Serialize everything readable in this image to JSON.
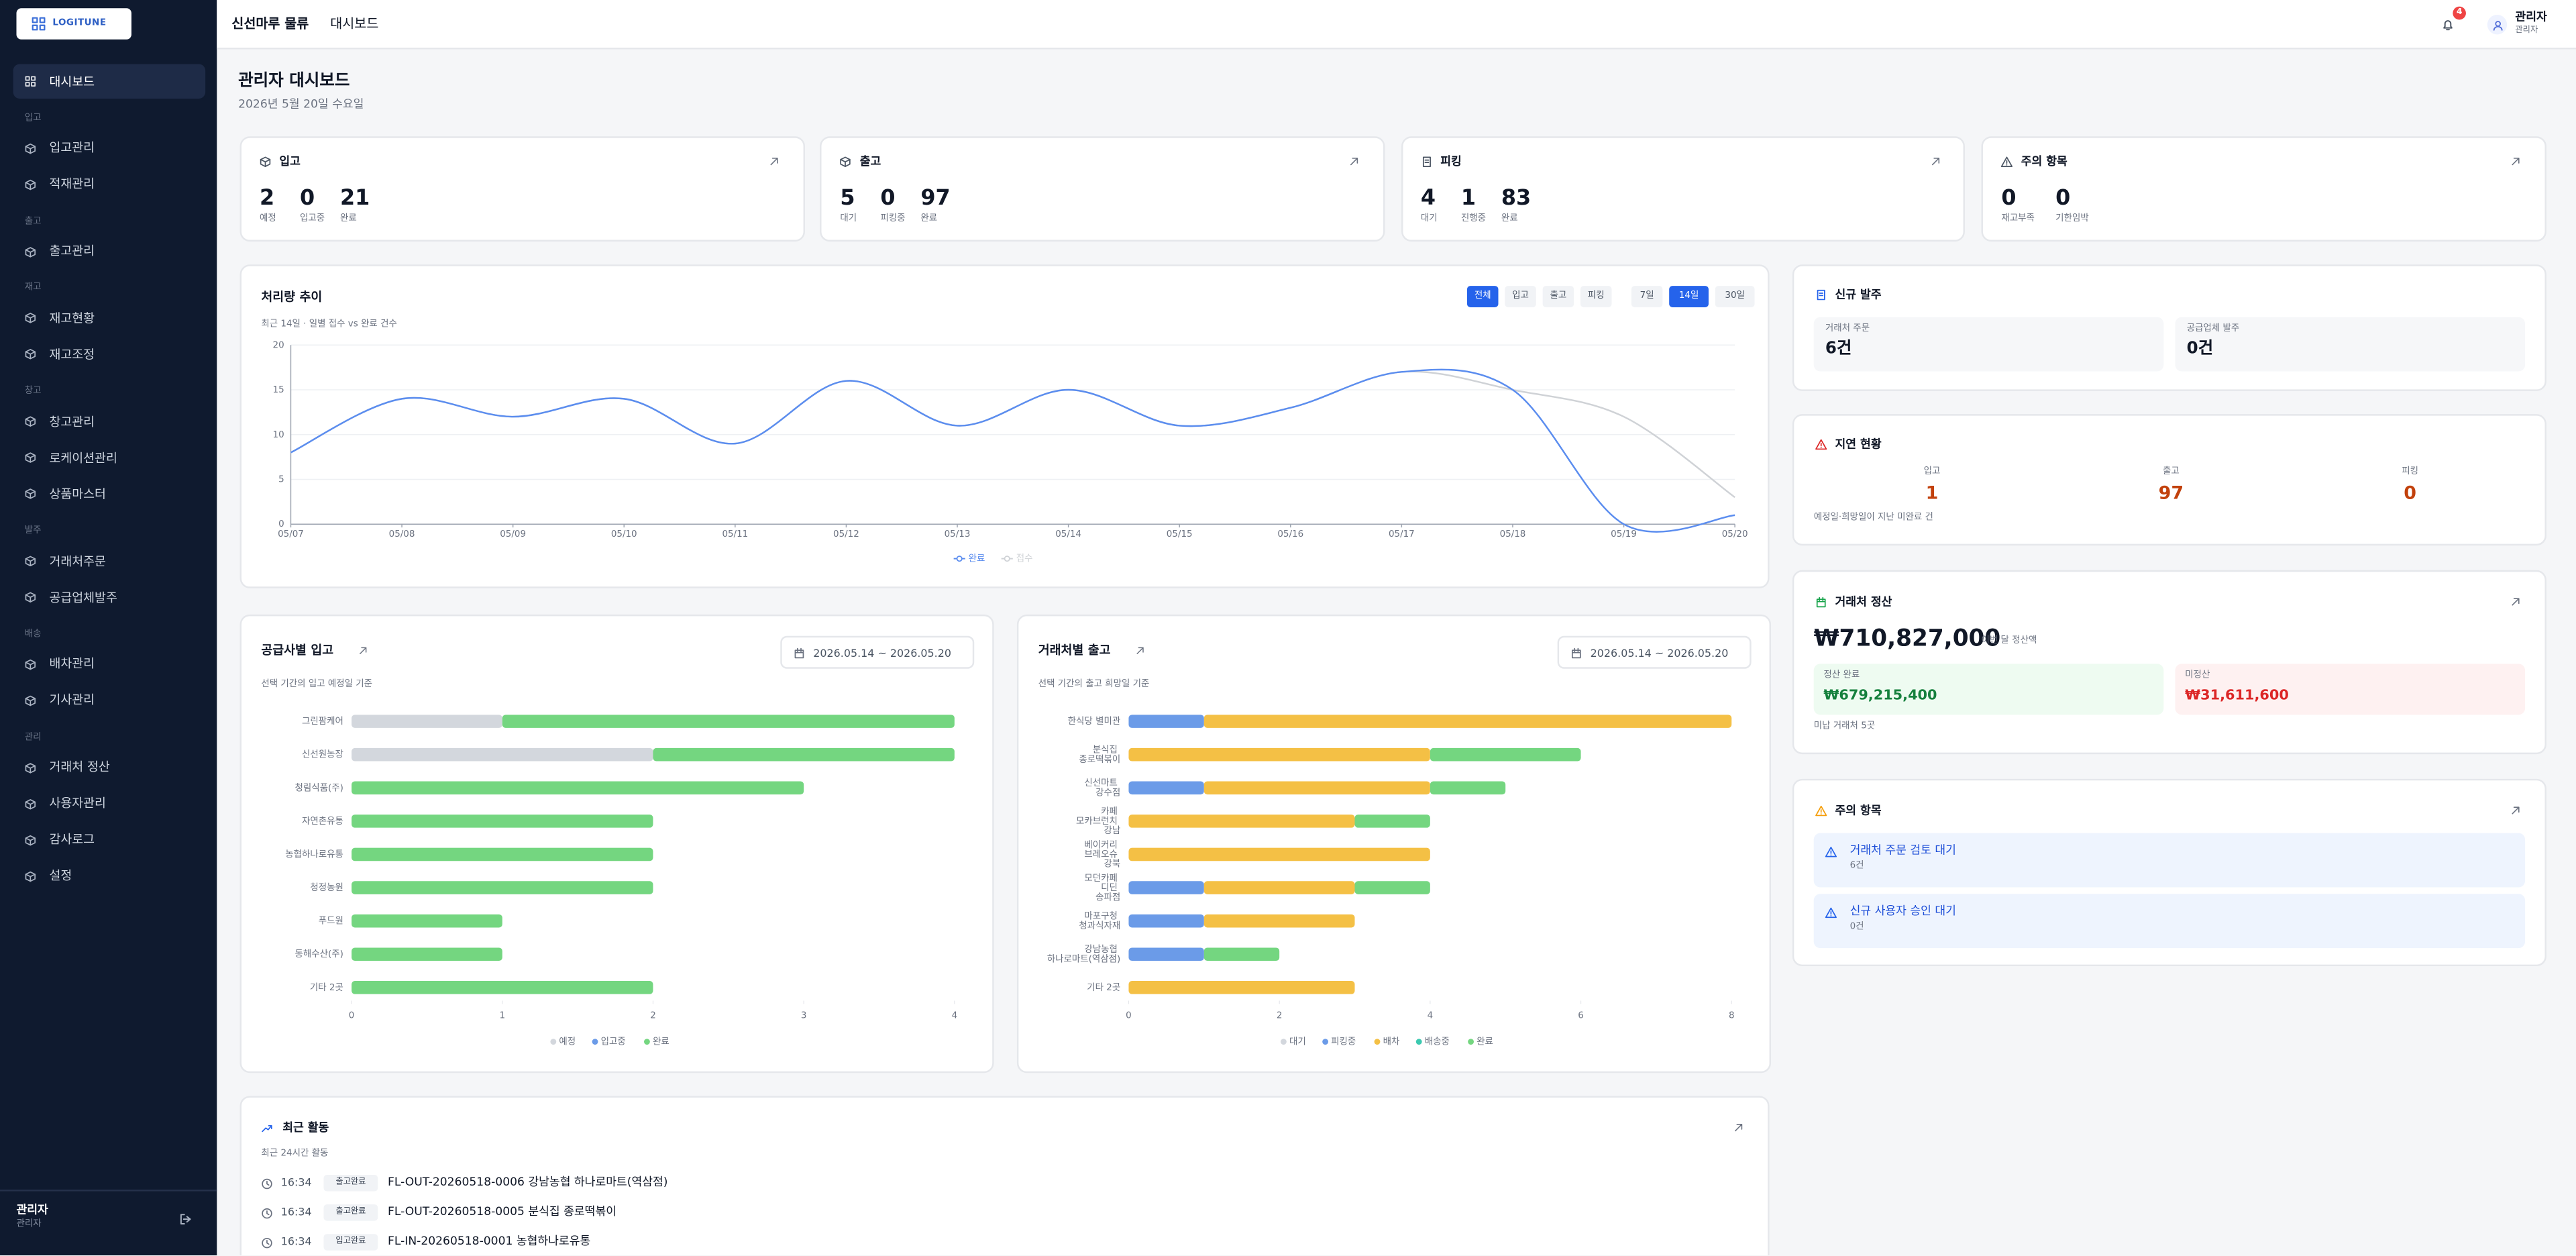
{
  "sidebar": {
    "logo": "LOGITUNE",
    "home": "대시보드",
    "groups": [
      {
        "title": "입고",
        "items": [
          "입고관리",
          "적재관리"
        ]
      },
      {
        "title": "출고",
        "items": [
          "출고관리"
        ]
      },
      {
        "title": "재고",
        "items": [
          "재고현황",
          "재고조정"
        ]
      },
      {
        "title": "창고",
        "items": [
          "창고관리",
          "로케이션관리",
          "상품마스터"
        ]
      },
      {
        "title": "발주",
        "items": [
          "거래처주문",
          "공급업체발주"
        ]
      },
      {
        "title": "배송",
        "items": [
          "배차관리",
          "기사관리"
        ]
      },
      {
        "title": "관리",
        "items": [
          "거래처 정산",
          "사용자관리",
          "감사로그",
          "설정"
        ]
      }
    ],
    "user": {
      "name": "관리자",
      "role": "관리자"
    }
  },
  "header": {
    "breadcrumb": [
      "신선마루 물류",
      "대시보드"
    ],
    "notifications": 4,
    "user": {
      "name": "관리자",
      "role": "관리자"
    }
  },
  "page": {
    "title": "관리자 대시보드",
    "date": "2026년 5월 20일 수요일"
  },
  "summary_cards": [
    {
      "title": "입고",
      "stats": [
        {
          "value": 2,
          "label": "예정"
        },
        {
          "value": 0,
          "label": "입고중"
        },
        {
          "value": 21,
          "label": "완료"
        }
      ]
    },
    {
      "title": "출고",
      "stats": [
        {
          "value": 5,
          "label": "대기"
        },
        {
          "value": 0,
          "label": "피킹중"
        },
        {
          "value": 97,
          "label": "완료"
        }
      ]
    },
    {
      "title": "피킹",
      "stats": [
        {
          "value": 4,
          "label": "대기"
        },
        {
          "value": 1,
          "label": "진행중"
        },
        {
          "value": 83,
          "label": "완료"
        }
      ]
    },
    {
      "title": "주의 항목",
      "stats": [
        {
          "value": 0,
          "label": "재고부족"
        },
        {
          "value": 0,
          "label": "기한임박"
        }
      ]
    }
  ],
  "chart_data": [
    {
      "type": "line",
      "title": "처리량 추이",
      "subtitle": "최근 14일 · 일별 접수 vs 완료 건수",
      "filters": [
        "전체",
        "입고",
        "출고",
        "피킹"
      ],
      "active_filter": "전체",
      "ranges": [
        "7일",
        "14일",
        "30일"
      ],
      "active_range": "14일",
      "categories": [
        "05/07",
        "05/08",
        "05/09",
        "05/10",
        "05/11",
        "05/12",
        "05/13",
        "05/14",
        "05/15",
        "05/16",
        "05/17",
        "05/18",
        "05/19",
        "05/20"
      ],
      "series": [
        {
          "name": "완료",
          "color": "#5b8def",
          "values": [
            8,
            14,
            12,
            14,
            9,
            16,
            11,
            15,
            11,
            13,
            17,
            15,
            0,
            1
          ]
        },
        {
          "name": "접수",
          "color": "#cfd2d6",
          "values": [
            8,
            14,
            12,
            14,
            9,
            16,
            11,
            15,
            11,
            13,
            17,
            15,
            12,
            3
          ]
        }
      ],
      "ylim": [
        0,
        20
      ],
      "yticks": [
        0,
        5,
        10,
        15,
        20
      ],
      "grid": true
    },
    {
      "type": "bar",
      "orientation": "horizontal",
      "stacked": true,
      "title": "공급사별 입고",
      "subtitle": "선택 기간의 입고 예정일 기준",
      "date_range": "2026.05.14 ~ 2026.05.20",
      "categories": [
        "그린팜케어",
        "신선원농장",
        "청림식품(주)",
        "자연촌유통",
        "농협하나로유통",
        "청정농원",
        "푸드원",
        "동해수산(주)",
        "기타 2곳"
      ],
      "series": [
        {
          "name": "예정",
          "color": "#d3d7dd",
          "values": [
            1,
            2,
            0,
            0,
            0,
            0,
            0,
            0,
            0
          ]
        },
        {
          "name": "입고중",
          "color": "#6b9be8",
          "values": [
            0,
            0,
            0,
            0,
            0,
            0,
            0,
            0,
            0
          ]
        },
        {
          "name": "완료",
          "color": "#74d680",
          "values": [
            3,
            2,
            3,
            2,
            2,
            2,
            1,
            1,
            2
          ]
        }
      ],
      "xlim": [
        0,
        4
      ],
      "xticks": [
        0,
        1,
        2,
        3,
        4
      ]
    },
    {
      "type": "bar",
      "orientation": "horizontal",
      "stacked": true,
      "title": "거래처별 출고",
      "subtitle": "선택 기간의 출고 희망일 기준",
      "date_range": "2026.05.14 ~ 2026.05.20",
      "categories": [
        "한식당 별미관",
        "분식집 종로떡볶이",
        "신선마트 강수점",
        "카페 모카브런치 강남",
        "베이커리 브레오슈 강북",
        "모던카페 디딘 송파점",
        "마포구청 청과식자재",
        "강남농협 하나로마트(역삼점)",
        "기타 2곳"
      ],
      "series": [
        {
          "name": "대기",
          "color": "#d3d7dd",
          "values": [
            0,
            0,
            0,
            0,
            0,
            0,
            0,
            0,
            0
          ]
        },
        {
          "name": "피킹중",
          "color": "#6b9be8",
          "values": [
            1,
            0,
            1,
            0,
            0,
            1,
            1,
            1,
            0
          ]
        },
        {
          "name": "배차",
          "color": "#f4c045",
          "values": [
            7,
            4,
            3,
            3,
            4,
            2,
            2,
            0,
            3
          ]
        },
        {
          "name": "배송중",
          "color": "#3cc9b0",
          "values": [
            0,
            0,
            0,
            0,
            0,
            0,
            0,
            0,
            0
          ]
        },
        {
          "name": "완료",
          "color": "#74d680",
          "values": [
            0,
            2,
            1,
            1,
            0,
            1,
            0,
            1,
            0
          ]
        }
      ],
      "xlim": [
        0,
        8
      ],
      "xticks": [
        0,
        2,
        4,
        6,
        8
      ]
    }
  ],
  "new_orders": {
    "title": "신규 발주",
    "items": [
      {
        "label": "거래처 주문",
        "value": "6건"
      },
      {
        "label": "공급업체 발주",
        "value": "0건"
      }
    ]
  },
  "delays": {
    "title": "지연 현황",
    "items": [
      {
        "label": "입고",
        "value": 1
      },
      {
        "label": "출고",
        "value": 97
      },
      {
        "label": "피킹",
        "value": 0
      }
    ],
    "note": "예정일·희망일이 지난 미완료 건"
  },
  "settlement": {
    "title": "거래처 정산",
    "amount": "₩710,827,000",
    "amount_label": "이번 달 정산액",
    "paid": {
      "label": "정산 완료",
      "value": "₩679,215,400"
    },
    "unpaid": {
      "label": "미정산",
      "value": "₩31,611,600"
    },
    "note": "미납 거래처 5곳"
  },
  "alerts": {
    "title": "주의 항목",
    "items": [
      {
        "title": "거래처 주문 검토 대기",
        "detail": "6건"
      },
      {
        "title": "신규 사용자 승인 대기",
        "detail": "0건"
      }
    ]
  },
  "activity": {
    "title": "최근 활동",
    "subtitle": "최근 24시간 활동",
    "items": [
      {
        "time": "16:34",
        "tag": "출고완료",
        "text": "FL-OUT-20260518-0006 강남농협 하나로마트(역삼점)"
      },
      {
        "time": "16:34",
        "tag": "출고완료",
        "text": "FL-OUT-20260518-0005 분식집 종로떡볶이"
      },
      {
        "time": "16:34",
        "tag": "입고완료",
        "text": "FL-IN-20260518-0001 농협하나로유통"
      }
    ]
  }
}
